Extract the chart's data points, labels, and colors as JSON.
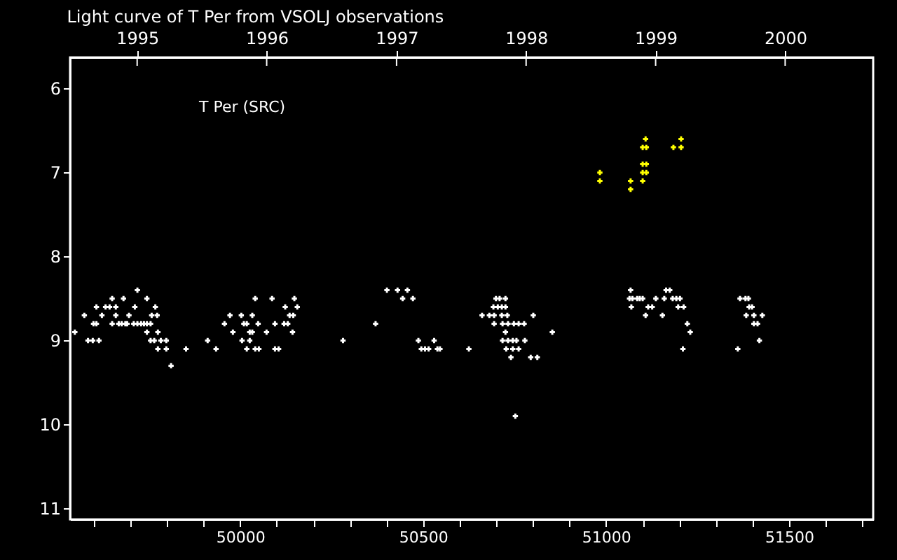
{
  "chart_data": {
    "type": "scatter",
    "title": "Light curve of T Per from VSOLJ observations",
    "annotations": [
      "T Per (SRC)"
    ],
    "xlim": [
      49535,
      51730
    ],
    "ylim": [
      11.13,
      5.63
    ],
    "xticks": [
      {
        "value": 49600,
        "label": null
      },
      {
        "value": 49700,
        "label": null
      },
      {
        "value": 49800,
        "label": null
      },
      {
        "value": 49900,
        "label": null
      },
      50000,
      {
        "value": 50100,
        "label": null
      },
      {
        "value": 50200,
        "label": null
      },
      {
        "value": 50300,
        "label": null
      },
      {
        "value": 50400,
        "label": null
      },
      50500,
      {
        "value": 50600,
        "label": null
      },
      {
        "value": 50700,
        "label": null
      },
      {
        "value": 50800,
        "label": null
      },
      {
        "value": 50900,
        "label": null
      },
      51000,
      {
        "value": 51100,
        "label": null
      },
      {
        "value": 51200,
        "label": null
      },
      {
        "value": 51300,
        "label": null
      },
      {
        "value": 51400,
        "label": null
      },
      51500,
      {
        "value": 51600,
        "label": null
      },
      {
        "value": 51700,
        "label": null
      }
    ],
    "x2lim": [
      "1994-06-26",
      "2000-09-05"
    ],
    "x2ticks": [
      "1995",
      "1996",
      "1997",
      "1998",
      "1999",
      "2000"
    ],
    "yticks": [
      6,
      7,
      8,
      9,
      10,
      11
    ],
    "grid": false,
    "marker": "cross",
    "series": [
      {
        "color": "#ffffff",
        "x": [
          49548,
          49584,
          49597,
          49614,
          49574,
          49607,
          49599,
          49607,
          49622,
          49632,
          49643,
          49650,
          49650,
          49660,
          49660,
          49668,
          49676,
          49686,
          49691,
          49681,
          49696,
          49712,
          49709,
          49719,
          49729,
          49737,
          49745,
          49755,
          49719,
          49745,
          49745,
          49758,
          49773,
          49768,
          49755,
          49765,
          49783,
          49798,
          49775,
          49775,
          49798,
          49811,
          49852,
          49911,
          49934,
          49957,
          49972,
          49980,
          50003,
          50010,
          50018,
          50005,
          50026,
          50018,
          50026,
          50033,
          50033,
          50041,
          50041,
          50051,
          50049,
          50072,
          50087,
          50095,
          50095,
          50105,
          50123,
          50120,
          50130,
          50135,
          50145,
          50143,
          50148,
          50156,
          50281,
          50370,
          50401,
          50430,
          50457,
          50444,
          50472,
          50487,
          50530,
          50495,
          50505,
          50515,
          50539,
          50546,
          50625,
          50661,
          50681,
          50694,
          50715,
          50730,
          50801,
          50694,
          50717,
          50732,
          50748,
          50761,
          50776,
          50699,
          50709,
          50725,
          50692,
          50704,
          50715,
          50725,
          50725,
          50717,
          50732,
          50745,
          50755,
          50778,
          50853,
          50727,
          50745,
          50761,
          50740,
          50794,
          50812,
          50752,
          51067,
          51164,
          51174,
          51064,
          51072,
          51085,
          51092,
          51100,
          51136,
          51159,
          51182,
          51192,
          51202,
          51069,
          51115,
          51126,
          51197,
          51212,
          51108,
          51154,
          51222,
          51230,
          51210,
          51366,
          51381,
          51389,
          51391,
          51399,
          51383,
          51404,
          51427,
          51404,
          51414,
          51419,
          51360
        ],
        "values": [
          8.9,
          9.0,
          9.0,
          9.0,
          8.7,
          8.6,
          8.8,
          8.8,
          8.7,
          8.6,
          8.6,
          8.5,
          8.8,
          8.6,
          8.7,
          8.8,
          8.8,
          8.8,
          8.8,
          8.5,
          8.7,
          8.6,
          8.8,
          8.8,
          8.8,
          8.8,
          8.8,
          8.8,
          8.4,
          8.5,
          8.9,
          8.7,
          8.7,
          8.6,
          9.0,
          9.0,
          9.0,
          9.0,
          8.9,
          9.1,
          9.1,
          9.3,
          9.1,
          9.0,
          9.1,
          8.8,
          8.7,
          8.9,
          8.7,
          8.8,
          8.8,
          9.0,
          9.0,
          9.1,
          8.9,
          8.9,
          8.7,
          8.5,
          9.1,
          9.1,
          8.8,
          8.9,
          8.5,
          8.8,
          9.1,
          9.1,
          8.6,
          8.8,
          8.8,
          8.7,
          8.7,
          8.9,
          8.5,
          8.6,
          9.0,
          8.8,
          8.4,
          8.4,
          8.4,
          8.5,
          8.5,
          9.0,
          9.0,
          9.1,
          9.1,
          9.1,
          9.1,
          9.1,
          9.1,
          8.7,
          8.7,
          8.7,
          8.7,
          8.7,
          8.7,
          8.8,
          8.8,
          8.8,
          8.8,
          8.8,
          8.8,
          8.5,
          8.5,
          8.5,
          8.6,
          8.6,
          8.6,
          8.6,
          8.9,
          9.0,
          9.0,
          9.0,
          9.0,
          9.0,
          8.9,
          9.1,
          9.1,
          9.1,
          9.2,
          9.2,
          9.2,
          9.9,
          8.4,
          8.4,
          8.4,
          8.5,
          8.5,
          8.5,
          8.5,
          8.5,
          8.5,
          8.5,
          8.5,
          8.5,
          8.5,
          8.6,
          8.6,
          8.6,
          8.6,
          8.6,
          8.7,
          8.7,
          8.8,
          8.9,
          9.1,
          8.5,
          8.5,
          8.5,
          8.6,
          8.6,
          8.7,
          8.7,
          8.7,
          8.8,
          8.8,
          9.0,
          9.1
        ]
      },
      {
        "color": "#ffff00",
        "x": [
          51108,
          51100,
          51110,
          51184,
          51205,
          51205,
          51100,
          51110,
          51100,
          51110,
          50983,
          50983,
          51067,
          51100,
          51067
        ],
        "values": [
          6.6,
          6.7,
          6.7,
          6.7,
          6.7,
          6.6,
          6.9,
          6.9,
          7.0,
          7.0,
          7.0,
          7.1,
          7.1,
          7.1,
          7.2
        ]
      }
    ]
  }
}
